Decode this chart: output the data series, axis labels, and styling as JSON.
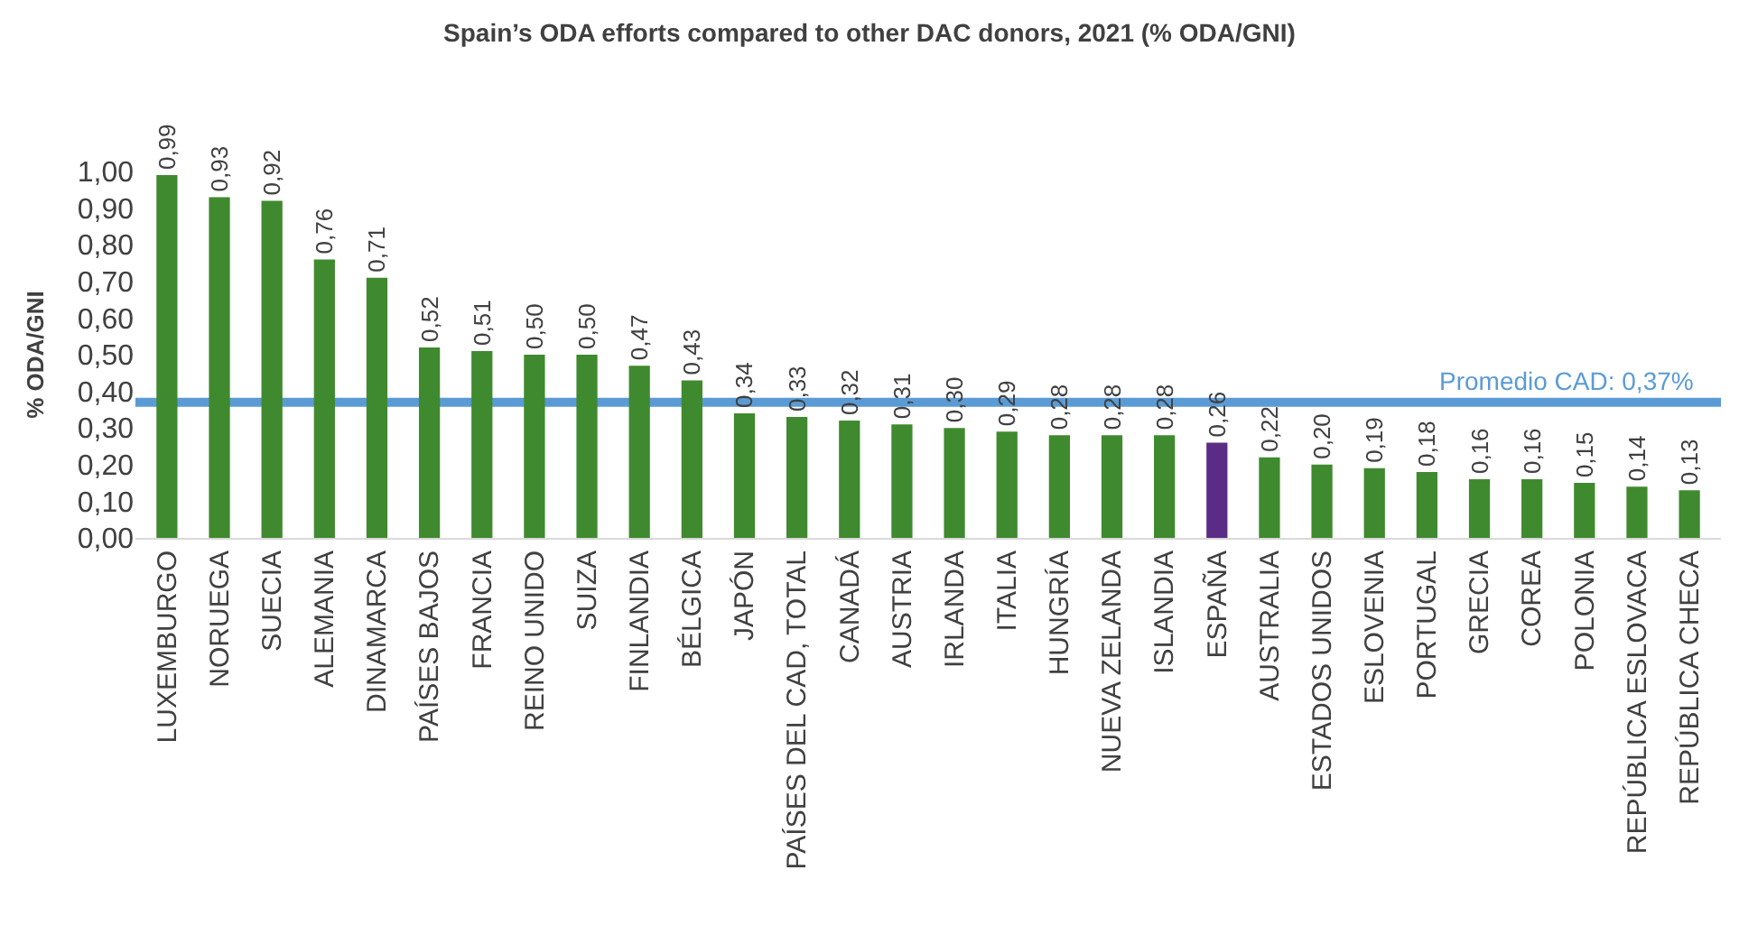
{
  "chart_data": {
    "type": "bar",
    "title": "Spain’s ODA efforts compared to other DAC donors, 2021 (% ODA/GNI)",
    "ylabel": "% ODA/GNI",
    "categories": [
      "LUXEMBURGO",
      "NORUEGA",
      "SUECIA",
      "ALEMANIA",
      "DINAMARCA",
      "PAÍSES BAJOS",
      "FRANCIA",
      "REINO UNIDO",
      "SUIZA",
      "FINLANDIA",
      "BÉLGICA",
      "JAPÓN",
      "PAÍSES DEL CAD, TOTAL",
      "CANADÁ",
      "AUSTRIA",
      "IRLANDA",
      "ITALIA",
      "HUNGRÍA",
      "NUEVA ZELANDA",
      "ISLANDIA",
      "ESPAÑA",
      "AUSTRALIA",
      "ESTADOS UNIDOS",
      "ESLOVENIA",
      "PORTUGAL",
      "GRECIA",
      "COREA",
      "POLONIA",
      "REPÚBLICA ESLOVACA",
      "REPÚBLICA CHECA"
    ],
    "values": [
      0.99,
      0.93,
      0.92,
      0.76,
      0.71,
      0.52,
      0.51,
      0.5,
      0.5,
      0.47,
      0.43,
      0.34,
      0.33,
      0.32,
      0.31,
      0.3,
      0.29,
      0.28,
      0.28,
      0.28,
      0.26,
      0.22,
      0.2,
      0.19,
      0.18,
      0.16,
      0.16,
      0.15,
      0.14,
      0.13
    ],
    "value_labels": [
      "0,99",
      "0,93",
      "0,92",
      "0,76",
      "0,71",
      "0,52",
      "0,51",
      "0,50",
      "0,50",
      "0,47",
      "0,43",
      "0,34",
      "0,33",
      "0,32",
      "0,31",
      "0,30",
      "0,29",
      "0,28",
      "0,28",
      "0,28",
      "0,26",
      "0,22",
      "0,20",
      "0,19",
      "0,18",
      "0,16",
      "0,16",
      "0,15",
      "0,14",
      "0,13"
    ],
    "colors": [
      "#3f8a2e",
      "#3f8a2e",
      "#3f8a2e",
      "#3f8a2e",
      "#3f8a2e",
      "#3f8a2e",
      "#3f8a2e",
      "#3f8a2e",
      "#3f8a2e",
      "#3f8a2e",
      "#3f8a2e",
      "#3f8a2e",
      "#3f8a2e",
      "#3f8a2e",
      "#3f8a2e",
      "#3f8a2e",
      "#3f8a2e",
      "#3f8a2e",
      "#3f8a2e",
      "#3f8a2e",
      "#5b2c86",
      "#3f8a2e",
      "#3f8a2e",
      "#3f8a2e",
      "#3f8a2e",
      "#3f8a2e",
      "#3f8a2e",
      "#3f8a2e",
      "#3f8a2e",
      "#3f8a2e"
    ],
    "ylim": [
      0,
      1.0
    ],
    "yticks": [
      {
        "value": 0,
        "label": "0,00"
      },
      {
        "value": 0.1,
        "label": "0,10"
      },
      {
        "value": 0.2,
        "label": "0,20"
      },
      {
        "value": 0.3,
        "label": "0,30"
      },
      {
        "value": 0.4,
        "label": "0,40"
      },
      {
        "value": 0.5,
        "label": "0,50"
      },
      {
        "value": 0.6,
        "label": "0,60"
      },
      {
        "value": 0.7,
        "label": "0,70"
      },
      {
        "value": 0.8,
        "label": "0,80"
      },
      {
        "value": 0.9,
        "label": "0,90"
      },
      {
        "value": 1.0,
        "label": "1,00"
      }
    ],
    "ref_lines": [
      {
        "axis": "y",
        "value": 0.37,
        "label": "Promedio CAD: 0,37%",
        "color": "#5b9bd5"
      }
    ],
    "grid": false
  }
}
